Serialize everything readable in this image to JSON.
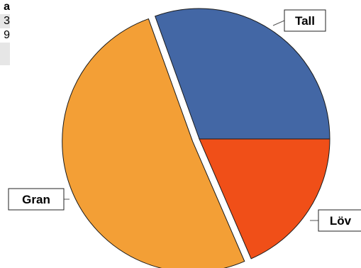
{
  "table_fragment": {
    "header": "a",
    "row1": "3",
    "row2": "9"
  },
  "chart_data": {
    "type": "pie",
    "slices": [
      {
        "label": "Tall",
        "value": 30.5,
        "color": "#4367a5"
      },
      {
        "label": "Löv",
        "value": 18.5,
        "color": "#f04f18"
      },
      {
        "label": "Gran",
        "value": 51.0,
        "color": "#f39f36"
      }
    ],
    "exploded": "Gran",
    "legend": "none"
  }
}
